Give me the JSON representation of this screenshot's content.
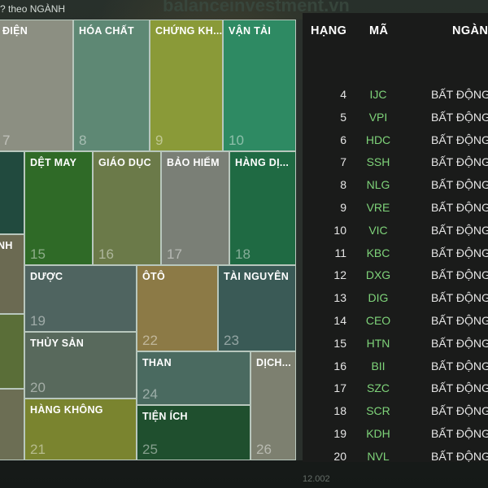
{
  "watermark": "balanceinvestment.vn",
  "caption": "? theo NGÀNH",
  "ticker_text": "12.002",
  "treemap": {
    "tiles": [
      {
        "name": "ĐIỆN",
        "num": "7",
        "color": "#8c8f82"
      },
      {
        "name": "HÓA CHẤT",
        "num": "8",
        "color": "#5e8874"
      },
      {
        "name": "CHỨNG KH...",
        "num": "9",
        "color": "#8a9a38"
      },
      {
        "name": "VẬN TẢI",
        "num": "10",
        "color": "#2e8a63"
      },
      {
        "name": "",
        "num": "",
        "color": "#214a3e"
      },
      {
        "name": "DỆT MAY",
        "num": "15",
        "color": "#2f6a27"
      },
      {
        "name": "GIÁO DỤC",
        "num": "16",
        "color": "#6b7a49"
      },
      {
        "name": "BẢO HIỂM",
        "num": "17",
        "color": "#7a7f76"
      },
      {
        "name": "HÀNG DỊ...",
        "num": "18",
        "color": "#1f6a43"
      },
      {
        "name": "NH",
        "num": "",
        "color": "#6b6a52"
      },
      {
        "name": "DƯỢC",
        "num": "19",
        "color": "#4f6460"
      },
      {
        "name": "ÔTÔ",
        "num": "22",
        "color": "#8c7a46"
      },
      {
        "name": "TÀI NGUYÊN",
        "num": "23",
        "color": "#3a5a56"
      },
      {
        "name": "",
        "num": "",
        "color": "#5a6e38"
      },
      {
        "name": "THỦY SẢN",
        "num": "20",
        "color": "#58695c"
      },
      {
        "name": "THAN",
        "num": "24",
        "color": "#4a6a60"
      },
      {
        "name": "DỊCH...",
        "num": "26",
        "color": "#7d8070"
      },
      {
        "name": "",
        "num": "",
        "color": "#6c6e54"
      },
      {
        "name": "HÀNG KHÔNG",
        "num": "21",
        "color": "#7a842f"
      },
      {
        "name": "TIỆN ÍCH",
        "num": "25",
        "color": "#1f4f2e"
      }
    ]
  },
  "table": {
    "headers": {
      "rank": "HẠNG",
      "code": "MÃ",
      "sector": "NGÀN"
    },
    "rows": [
      {
        "rank": "4",
        "code": "IJC",
        "sector": "BẤT ĐỘNG"
      },
      {
        "rank": "5",
        "code": "VPI",
        "sector": "BẤT ĐỘNG"
      },
      {
        "rank": "6",
        "code": "HDC",
        "sector": "BẤT ĐỘNG"
      },
      {
        "rank": "7",
        "code": "SSH",
        "sector": "BẤT ĐỘNG"
      },
      {
        "rank": "8",
        "code": "NLG",
        "sector": "BẤT ĐỘNG"
      },
      {
        "rank": "9",
        "code": "VRE",
        "sector": "BẤT ĐỘNG"
      },
      {
        "rank": "10",
        "code": "VIC",
        "sector": "BẤT ĐỘNG"
      },
      {
        "rank": "11",
        "code": "KBC",
        "sector": "BẤT ĐỘNG"
      },
      {
        "rank": "12",
        "code": "DXG",
        "sector": "BẤT ĐỘNG"
      },
      {
        "rank": "13",
        "code": "DIG",
        "sector": "BẤT ĐỘNG"
      },
      {
        "rank": "14",
        "code": "CEO",
        "sector": "BẤT ĐỘNG"
      },
      {
        "rank": "15",
        "code": "HTN",
        "sector": "BẤT ĐỘNG"
      },
      {
        "rank": "16",
        "code": "BII",
        "sector": "BẤT ĐỘNG"
      },
      {
        "rank": "17",
        "code": "SZC",
        "sector": "BẤT ĐỘNG"
      },
      {
        "rank": "18",
        "code": "SCR",
        "sector": "BẤT ĐỘNG"
      },
      {
        "rank": "19",
        "code": "KDH",
        "sector": "BẤT ĐỘNG"
      },
      {
        "rank": "20",
        "code": "NVL",
        "sector": "BẤT ĐỘNG"
      }
    ]
  }
}
